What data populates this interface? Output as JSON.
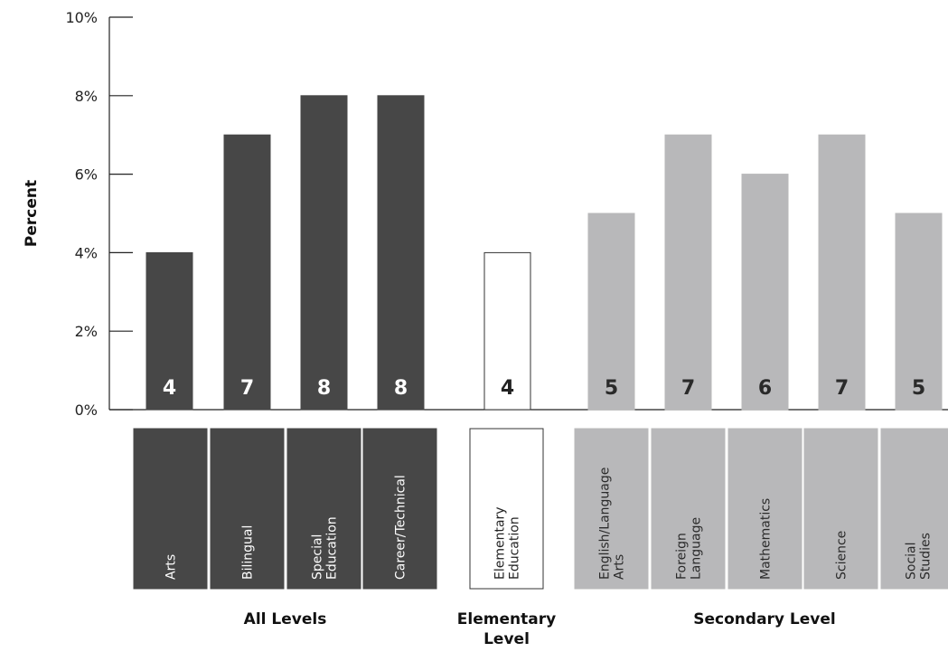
{
  "chart_data": {
    "type": "bar",
    "ylabel": "Percent",
    "ylim": [
      0,
      10
    ],
    "yticks": [
      "0%",
      "2%",
      "4%",
      "6%",
      "8%",
      "10%"
    ],
    "grid": false,
    "categories": [
      {
        "label": "Arts",
        "value": 4,
        "value_label": "4",
        "group": 0
      },
      {
        "label": "Bilingual",
        "value": 7,
        "value_label": "7",
        "group": 0
      },
      {
        "label": "Special Education",
        "value": 8,
        "value_label": "8",
        "group": 0
      },
      {
        "label": "Career/Technical",
        "value": 8,
        "value_label": "8",
        "group": 0
      },
      {
        "label": "Elementary Education",
        "value": 4,
        "value_label": "4",
        "group": 1
      },
      {
        "label": "English/Language Arts",
        "value": 5,
        "value_label": "5",
        "group": 2
      },
      {
        "label": "Foreign Language",
        "value": 7,
        "value_label": "7",
        "group": 2
      },
      {
        "label": "Mathematics",
        "value": 6,
        "value_label": "6",
        "group": 2
      },
      {
        "label": "Science",
        "value": 7,
        "value_label": "7",
        "group": 2
      },
      {
        "label": "Social Studies",
        "value": 5,
        "value_label": "5",
        "group": 2
      }
    ],
    "groups": [
      {
        "name": "All Levels",
        "fill": "#474747",
        "stroke": "#474747",
        "text": "#ffffff"
      },
      {
        "name": "Elementary Level",
        "fill": "#ffffff",
        "stroke": "#333333",
        "text": "#222222"
      },
      {
        "name": "Secondary Level",
        "fill": "#b8b8ba",
        "stroke": "#b8b8ba",
        "text": "#2a2a2a"
      }
    ]
  }
}
